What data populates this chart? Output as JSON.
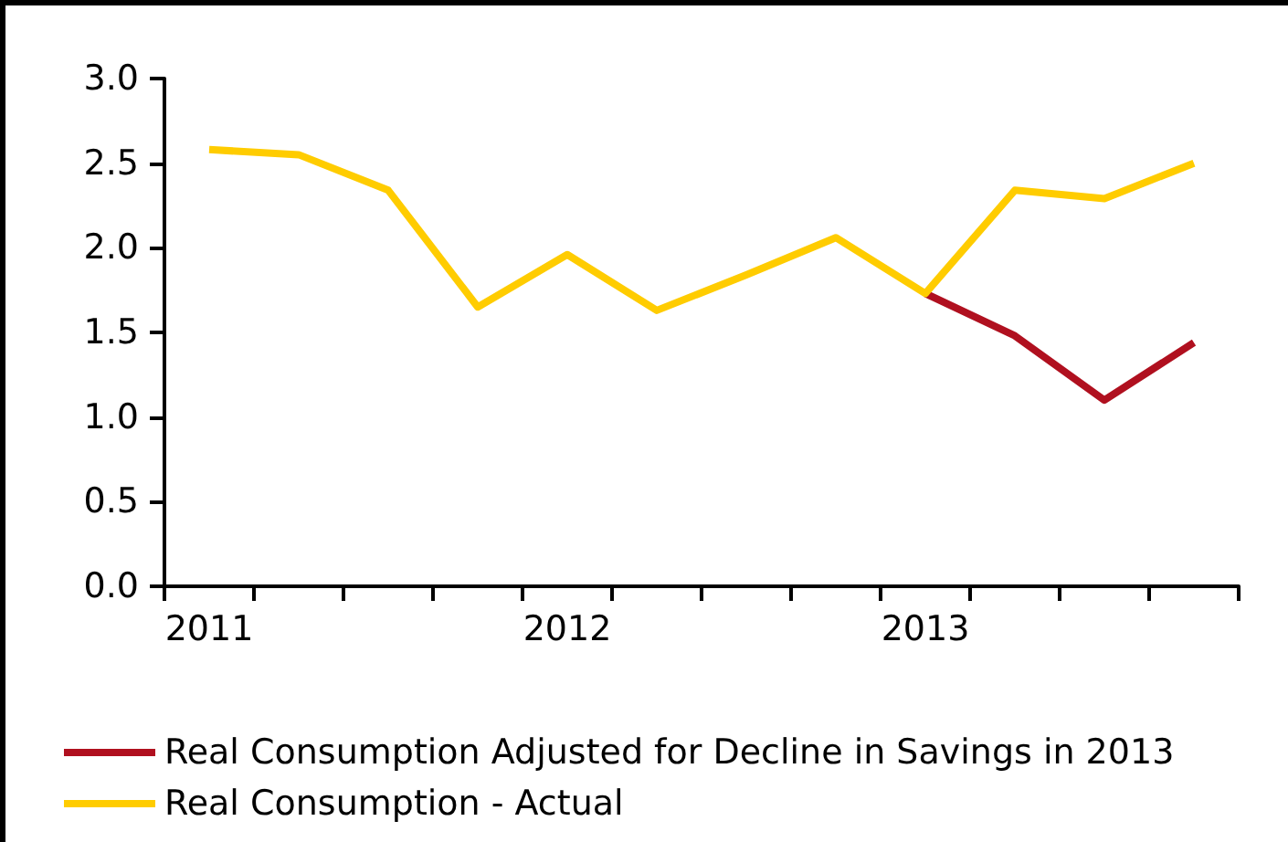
{
  "chart_data": {
    "type": "line",
    "categories": [
      "2011",
      null,
      null,
      null,
      "2012",
      null,
      null,
      null,
      "2013",
      null,
      null,
      null
    ],
    "series": [
      {
        "name": "Real Consumption Adjusted for Decline in Savings in 2013",
        "color": "#b0101f",
        "values": [
          null,
          null,
          null,
          null,
          null,
          null,
          null,
          null,
          1.73,
          1.48,
          1.1,
          1.44
        ]
      },
      {
        "name": "Real Consumption - Actual",
        "color": "#ffcc00",
        "values": [
          2.58,
          2.55,
          2.34,
          1.65,
          1.96,
          1.63,
          1.84,
          2.06,
          1.73,
          2.34,
          2.29,
          2.5
        ]
      }
    ],
    "ylim": [
      0,
      3
    ],
    "yticks": [
      {
        "value": 0,
        "label": "0.0"
      },
      0.5,
      {
        "value": 1,
        "label": "1.0"
      },
      1.5,
      {
        "value": 2,
        "label": "2.0"
      },
      2.5,
      {
        "value": 3,
        "label": "3.0"
      }
    ],
    "grid": false,
    "legend": "bottom",
    "marker": "none",
    "line_style": "solid"
  }
}
